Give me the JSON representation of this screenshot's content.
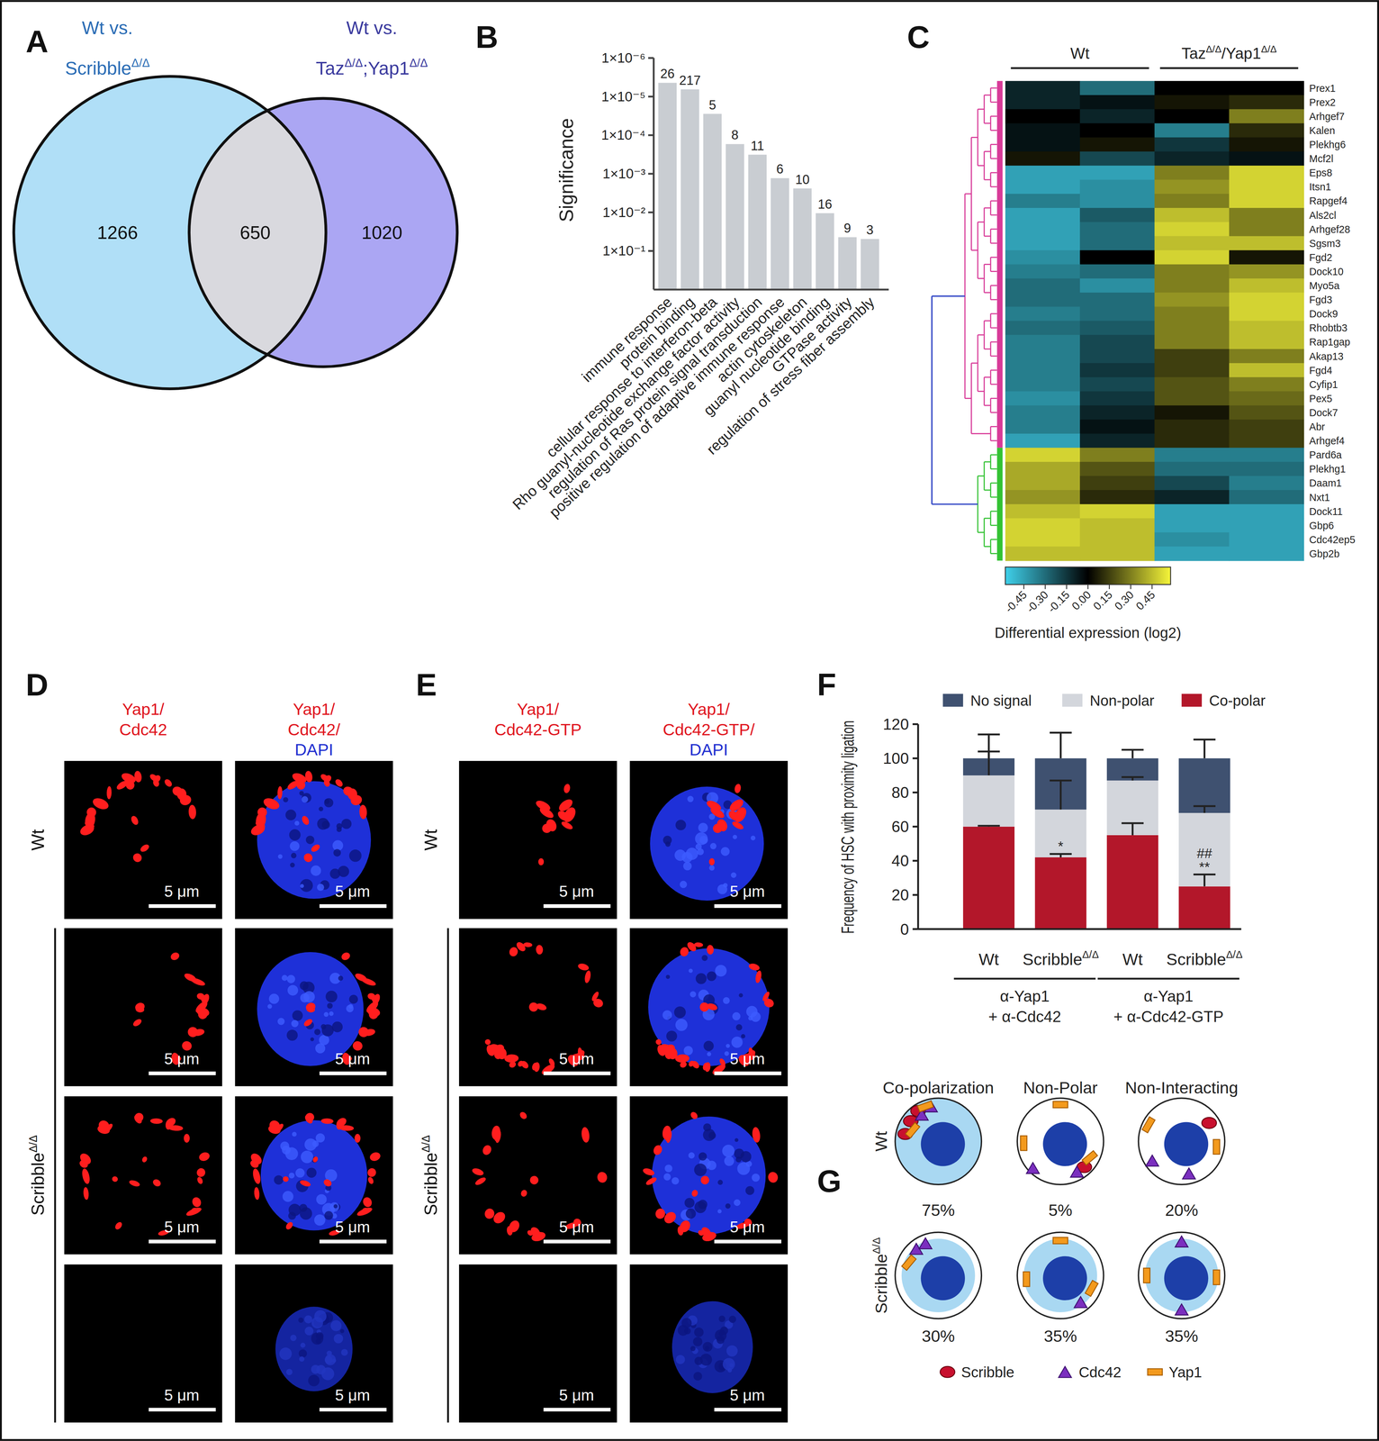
{
  "chart_data": [
    {
      "type": "venn",
      "panel_label": "A",
      "sets": [
        {
          "name": [
            "Wt vs.",
            [
              {
                "text": "Scribble",
                "sup": "Δ/Δ"
              }
            ]
          ]
        },
        {
          "name": [
            "Wt vs.",
            [
              {
                "text": "Taz",
                "sup": "Δ/Δ"
              },
              {
                "text": ";Yap1",
                "sup": "Δ/Δ"
              }
            ]
          ]
        }
      ],
      "values": [
        1266,
        650,
        1020
      ],
      "colors": [
        "#b0dff7",
        "#d9d9de",
        "#aba6f3"
      ]
    },
    {
      "type": "bar",
      "panel_label": "B",
      "log": "y",
      "color": "#c9cdd2",
      "y_label": "Significance",
      "categories": [
        "immune response",
        "protein binding",
        "cellular response to interferon-beta",
        "Rho guanyl-nucleotide exchange factor activity",
        "regulation of Ras protein signal transduction",
        "positive regulation of adaptive immune response",
        "actin cytoskeleton",
        "guanyl nucleotide binding",
        "GTPase activity",
        "regulation of stress fiber assembly"
      ],
      "values": [
        4.4e-06,
        6.5e-06,
        2.8e-05,
        0.00017,
        0.00032,
        0.0013,
        0.0024,
        0.0105,
        0.044,
        0.049
      ],
      "counts": [
        26,
        217,
        5,
        8,
        11,
        6,
        10,
        16,
        9,
        3
      ],
      "ylim": [
        1,
        1e-06
      ],
      "yticks": [
        {
          "value": 1e-06,
          "label": "1×10⁻⁶"
        },
        {
          "value": 1e-05,
          "label": "1×10⁻⁵"
        },
        {
          "value": 0.0001,
          "label": "1×10⁻⁴"
        },
        {
          "value": 0.001,
          "label": "1×10⁻³"
        },
        {
          "value": 0.01,
          "label": "1×10⁻²"
        },
        {
          "value": 0.1,
          "label": "1×10⁻¹"
        }
      ]
    },
    {
      "type": "heatmap",
      "panel_label": "C",
      "column_groups": [
        {
          "label": "Wt",
          "columns": 2
        },
        {
          "label": [
            {
              "text": "Taz",
              "sup": "Δ/Δ"
            },
            {
              "text": "/Yap1",
              "sup": "Δ/Δ"
            }
          ],
          "columns": 2
        }
      ],
      "rows": [
        "Prex1",
        "Prex2",
        "Arhgef7",
        "Kalen",
        "Plekhg6",
        "Mcf2l",
        "Eps8",
        "Itsn1",
        "Rapgef4",
        "Als2cl",
        "Arhgef28",
        "Sgsm3",
        "Fgd2",
        "Dock10",
        "Myo5a",
        "Fgd3",
        "Dock9",
        "Rhobtb3",
        "Rap1gap",
        "Akap13",
        "Fgd4",
        "Cyfip1",
        "Pex5",
        "Dock7",
        "Abr",
        "Arhgef4",
        "Pard6a",
        "Plekhg1",
        "Daam1",
        "Nxt1",
        "Dock11",
        "Gbp6",
        "Cdc42ep5",
        "Gbp2b"
      ],
      "cells": [
        [
          -0.1,
          -0.3,
          0.0,
          0.0
        ],
        [
          -0.1,
          -0.05,
          0.05,
          0.1
        ],
        [
          0.0,
          -0.1,
          0.0,
          0.3
        ],
        [
          -0.05,
          0.0,
          -0.35,
          0.1
        ],
        [
          -0.05,
          0.05,
          -0.15,
          0.05
        ],
        [
          0.05,
          -0.2,
          -0.1,
          -0.05
        ],
        [
          -0.45,
          -0.45,
          0.3,
          0.5
        ],
        [
          -0.45,
          -0.4,
          0.35,
          0.5
        ],
        [
          -0.35,
          -0.4,
          0.3,
          0.5
        ],
        [
          -0.45,
          -0.25,
          0.45,
          0.3
        ],
        [
          -0.45,
          -0.3,
          0.5,
          0.3
        ],
        [
          -0.45,
          -0.3,
          0.45,
          0.45
        ],
        [
          -0.4,
          0.0,
          0.5,
          0.05
        ],
        [
          -0.35,
          -0.3,
          0.3,
          0.35
        ],
        [
          -0.3,
          -0.4,
          0.3,
          0.45
        ],
        [
          -0.3,
          -0.3,
          0.35,
          0.5
        ],
        [
          -0.35,
          -0.3,
          0.3,
          0.5
        ],
        [
          -0.3,
          -0.25,
          0.3,
          0.45
        ],
        [
          -0.35,
          -0.2,
          0.3,
          0.45
        ],
        [
          -0.35,
          -0.2,
          0.15,
          0.3
        ],
        [
          -0.35,
          -0.15,
          0.15,
          0.45
        ],
        [
          -0.35,
          -0.2,
          0.2,
          0.3
        ],
        [
          -0.4,
          -0.15,
          0.2,
          0.25
        ],
        [
          -0.35,
          -0.1,
          0.05,
          0.2
        ],
        [
          -0.35,
          -0.05,
          0.1,
          0.15
        ],
        [
          -0.45,
          -0.1,
          0.1,
          0.15
        ],
        [
          0.5,
          0.3,
          -0.35,
          -0.35
        ],
        [
          0.4,
          0.2,
          -0.3,
          -0.3
        ],
        [
          0.4,
          0.15,
          -0.2,
          -0.35
        ],
        [
          0.35,
          0.1,
          -0.1,
          -0.3
        ],
        [
          0.45,
          0.5,
          -0.45,
          -0.45
        ],
        [
          0.5,
          0.45,
          -0.45,
          -0.45
        ],
        [
          0.5,
          0.45,
          -0.4,
          -0.45
        ],
        [
          0.45,
          0.45,
          -0.45,
          -0.45
        ]
      ],
      "clusters": [
        {
          "rows": 26,
          "color": "#d83a98"
        },
        {
          "rows": 8,
          "color": "#33c233"
        }
      ],
      "colorscale": [
        "#3fd0ea",
        "#000000",
        "#f5f53a"
      ],
      "color_range": [
        -0.58,
        0.58
      ],
      "color_ticks": [
        -0.45,
        {
          "value": -0.3,
          "label": "-0.30"
        },
        -0.15,
        {
          "value": 0,
          "label": "0.00"
        },
        0.15,
        {
          "value": 0.3,
          "label": "0.30"
        },
        0.45
      ],
      "colorbar_label": "Differential expression (log2)"
    },
    {
      "type": "bar",
      "stacked": true,
      "panel_label": "F",
      "legend": "top",
      "y_label": "Frequency of HSC with proximity ligation",
      "categories": [
        "Wt",
        [
          {
            "text": "Scribble",
            "sup": "Δ/Δ"
          }
        ],
        "Wt",
        [
          {
            "text": "Scribble",
            "sup": "Δ/Δ"
          }
        ]
      ],
      "groups": [
        {
          "label": [
            "α-Yap1",
            "+ α-Cdc42"
          ],
          "size": 2
        },
        {
          "label": [
            "α-Yap1",
            "+ α-Cdc42-GTP"
          ],
          "size": 2
        }
      ],
      "series": [
        {
          "name": "Co-polar",
          "color": "#b3172a",
          "values": [
            60,
            42,
            55,
            25
          ],
          "errors": [
            0.5,
            2,
            7,
            7
          ],
          "annotations": [
            null,
            [
              "*"
            ],
            null,
            [
              "##",
              "**"
            ]
          ]
        },
        {
          "name": "Non-polar",
          "color": "#d3d6dc",
          "values": [
            30,
            28,
            32,
            43
          ],
          "errors": [
            14,
            17,
            2,
            4
          ]
        },
        {
          "name": "No signal",
          "color": "#3f5170",
          "values": [
            10,
            30,
            13,
            32
          ],
          "errors": [
            14,
            15,
            5,
            11
          ]
        }
      ],
      "ylim": [
        0,
        120
      ],
      "yticks": [
        0,
        20,
        40,
        60,
        80,
        100,
        120
      ]
    }
  ],
  "panel_d": {
    "panel_label": "D",
    "column_headers": [
      [
        "Yap1/",
        "Cdc42"
      ],
      [
        "Yap1/",
        "Cdc42/",
        "DAPI"
      ]
    ],
    "row_groups": [
      {
        "label": "Wt",
        "images": 1
      },
      {
        "label": [
          {
            "text": "Scribble",
            "sup": "Δ/Δ"
          }
        ],
        "images": 3
      }
    ],
    "scale_bar": "5 μm"
  },
  "panel_e": {
    "panel_label": "E",
    "column_headers": [
      [
        "Yap1/",
        "Cdc42-GTP"
      ],
      [
        "Yap1/",
        "Cdc42-GTP/",
        "DAPI"
      ]
    ],
    "row_groups": [
      {
        "label": "Wt",
        "images": 1
      },
      {
        "label": [
          {
            "text": "Scribble",
            "sup": "Δ/Δ"
          }
        ],
        "images": 3
      }
    ],
    "scale_bar": "5 μm"
  },
  "panel_g": {
    "panel_label": "G",
    "columns": [
      "Co-polarization",
      "Non-Polar",
      "Non-Interacting"
    ],
    "rows": [
      {
        "label": "Wt",
        "percents": [
          "75%",
          "5%",
          "20%"
        ]
      },
      {
        "label": [
          {
            "text": "Scribble",
            "sup": "Δ/Δ"
          }
        ],
        "percents": [
          "30%",
          "35%",
          "35%"
        ]
      }
    ],
    "key_items": [
      "Scribble",
      "Cdc42",
      "Yap1"
    ]
  }
}
